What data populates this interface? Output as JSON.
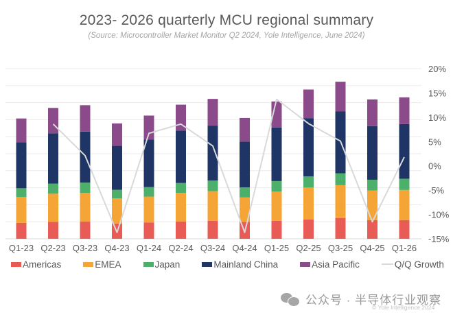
{
  "chart_data": {
    "type": "bar",
    "stacked": true,
    "title": "2023- 2026 quarterly MCU regional summary",
    "subtitle": "(Source: Microcontroller Market Monitor Q2 2024, Yole Intelligence, June 2024)",
    "xlabel": "",
    "ylabel": "",
    "categories": [
      "Q1-23",
      "Q2-23",
      "Q3-23",
      "Q4-23",
      "Q1-24",
      "Q2-24",
      "Q3-24",
      "Q4-24",
      "Q1-25",
      "Q2-25",
      "Q3-25",
      "Q4-25",
      "Q1-26"
    ],
    "primary_axis": {
      "visible": false,
      "ylim": [
        0,
        10
      ],
      "gridlines": 10,
      "unit_note": "relative units (axis labels not shown)"
    },
    "series": [
      {
        "name": "Americas",
        "color": "#e85c55",
        "values": [
          0.93,
          1.0,
          1.02,
          0.89,
          0.96,
          1.02,
          1.05,
          1.0,
          1.05,
          1.13,
          1.21,
          1.09,
          1.1
        ]
      },
      {
        "name": "EMEA",
        "color": "#f5a535",
        "values": [
          1.52,
          1.65,
          1.68,
          1.48,
          1.52,
          1.68,
          1.75,
          1.44,
          1.72,
          1.88,
          1.94,
          1.75,
          1.77
        ]
      },
      {
        "name": "Japan",
        "color": "#4caf6a",
        "values": [
          0.52,
          0.59,
          0.6,
          0.51,
          0.56,
          0.58,
          0.62,
          0.58,
          0.62,
          0.66,
          0.7,
          0.63,
          0.66
        ]
      },
      {
        "name": "Mainland China",
        "color": "#1e3566",
        "values": [
          2.7,
          2.96,
          3.0,
          2.58,
          2.8,
          3.08,
          3.23,
          2.69,
          3.15,
          3.42,
          3.63,
          3.15,
          3.21
        ]
      },
      {
        "name": "Asia Pacific",
        "color": "#8b4a8a",
        "values": [
          1.4,
          1.49,
          1.55,
          1.32,
          1.4,
          1.52,
          1.57,
          1.39,
          1.53,
          1.68,
          1.75,
          1.57,
          1.57
        ]
      }
    ],
    "line_series": {
      "name": "Q/Q Growth",
      "color": "#d9d9d9",
      "axis": "secondary",
      "values": [
        null,
        8.6,
        2.1,
        -13.7,
        6.7,
        8.6,
        4.1,
        -13.7,
        13.7,
        8.7,
        5.1,
        -11.5,
        1.8
      ]
    },
    "secondary_axis": {
      "position": "right",
      "ylim": [
        -15,
        20
      ],
      "ticks": [
        20,
        15,
        10,
        5,
        0,
        -5,
        -10,
        -15
      ],
      "tick_labels": [
        "20%",
        "15%",
        "10%",
        "5%",
        "0%",
        "-5%",
        "-10%",
        "-15%"
      ]
    },
    "grid": true,
    "legend_position": "bottom"
  },
  "legend": [
    {
      "label": "Americas",
      "type": "bar",
      "color": "#e85c55"
    },
    {
      "label": "EMEA",
      "type": "bar",
      "color": "#f5a535"
    },
    {
      "label": "Japan",
      "type": "bar",
      "color": "#4caf6a"
    },
    {
      "label": "Mainland China",
      "type": "bar",
      "color": "#1e3566"
    },
    {
      "label": "Asia Pacific",
      "type": "bar",
      "color": "#8b4a8a"
    },
    {
      "label": "Q/Q Growth",
      "type": "line",
      "color": "#d9d9d9"
    }
  ],
  "watermark": {
    "icon": "wechat-icon",
    "text": "公众号 · 半导体行业观察",
    "copyright": "© Yole Intelligence 2024"
  }
}
